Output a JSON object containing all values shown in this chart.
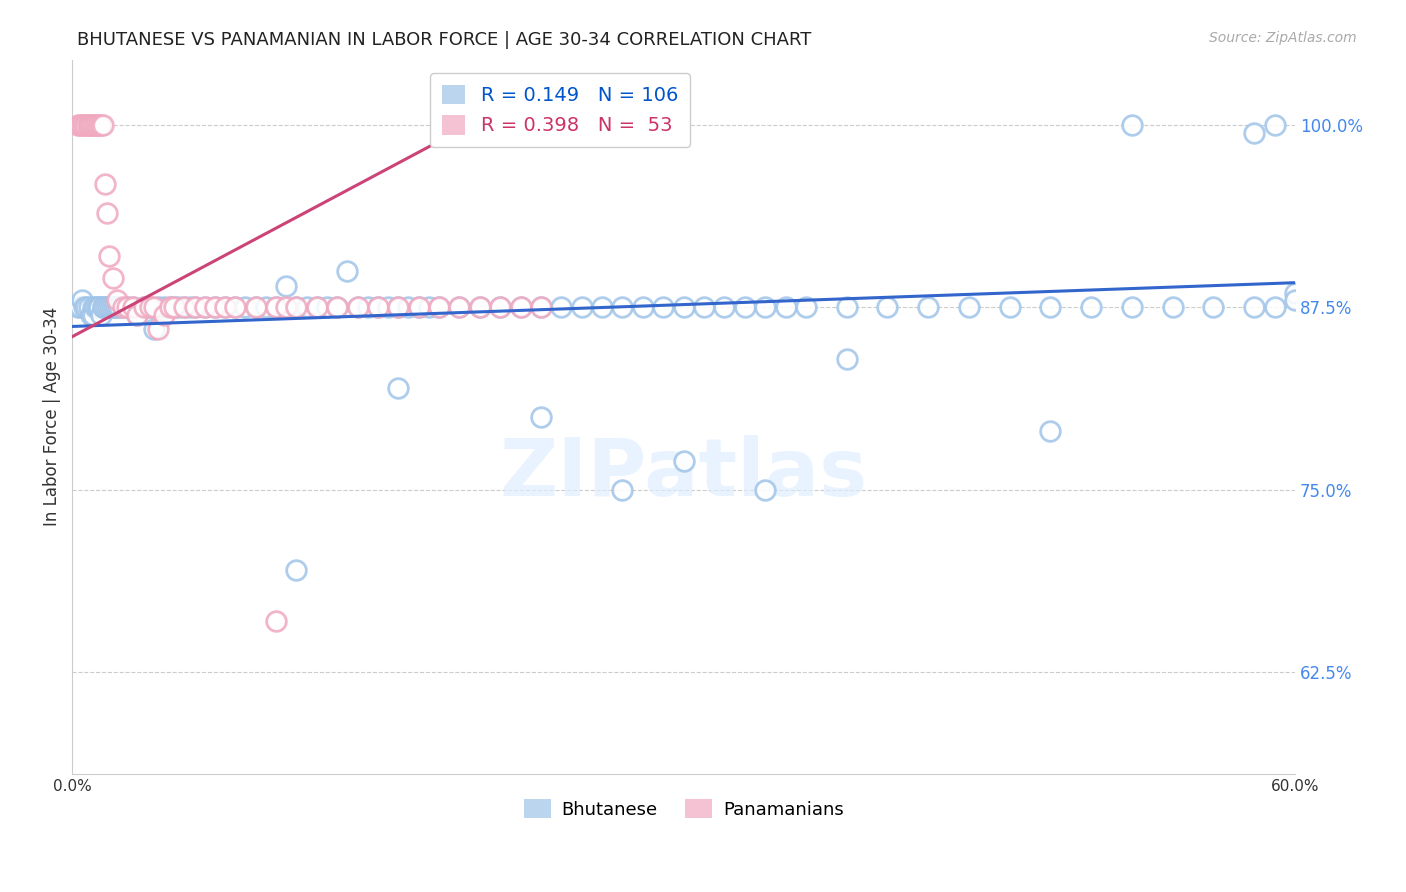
{
  "title": "BHUTANESE VS PANAMANIAN IN LABOR FORCE | AGE 30-34 CORRELATION CHART",
  "source": "Source: ZipAtlas.com",
  "ylabel": "In Labor Force | Age 30-34",
  "xlim": [
    0.0,
    0.6
  ],
  "ylim": [
    0.555,
    1.045
  ],
  "xticks": [
    0.0,
    0.1,
    0.2,
    0.3,
    0.4,
    0.5,
    0.6
  ],
  "xticklabels": [
    "0.0%",
    "",
    "",
    "",
    "",
    "",
    "60.0%"
  ],
  "yticks": [
    0.625,
    0.75,
    0.875,
    1.0
  ],
  "yticklabels": [
    "62.5%",
    "75.0%",
    "87.5%",
    "100.0%"
  ],
  "blue_R": 0.149,
  "blue_N": 106,
  "pink_R": 0.398,
  "pink_N": 53,
  "blue_color": "#a0c4e8",
  "pink_color": "#f0a8bf",
  "blue_line_color": "#3366cc",
  "pink_line_color": "#cc4477",
  "legend_label_blue": "Bhutanese",
  "legend_label_pink": "Panamanians",
  "watermark": "ZIPatlas",
  "blue_scatter_x": [
    0.003,
    0.004,
    0.005,
    0.006,
    0.007,
    0.008,
    0.009,
    0.01,
    0.01,
    0.011,
    0.012,
    0.013,
    0.013,
    0.014,
    0.015,
    0.015,
    0.016,
    0.017,
    0.018,
    0.019,
    0.02,
    0.021,
    0.022,
    0.023,
    0.025,
    0.027,
    0.03,
    0.032,
    0.035,
    0.038,
    0.04,
    0.042,
    0.045,
    0.048,
    0.05,
    0.052,
    0.055,
    0.058,
    0.06,
    0.065,
    0.07,
    0.075,
    0.08,
    0.085,
    0.09,
    0.095,
    0.1,
    0.105,
    0.11,
    0.115,
    0.12,
    0.125,
    0.13,
    0.135,
    0.14,
    0.145,
    0.15,
    0.155,
    0.16,
    0.165,
    0.17,
    0.175,
    0.18,
    0.19,
    0.2,
    0.21,
    0.22,
    0.23,
    0.24,
    0.25,
    0.26,
    0.27,
    0.28,
    0.29,
    0.3,
    0.31,
    0.32,
    0.33,
    0.34,
    0.35,
    0.36,
    0.38,
    0.4,
    0.42,
    0.44,
    0.46,
    0.48,
    0.5,
    0.52,
    0.54,
    0.56,
    0.58,
    0.59,
    0.6,
    0.11,
    0.16,
    0.23,
    0.3,
    0.38,
    0.48,
    0.52,
    0.58,
    0.59,
    0.6,
    0.27,
    0.34
  ],
  "blue_scatter_y": [
    0.875,
    0.875,
    0.88,
    0.875,
    0.875,
    0.875,
    0.87,
    0.875,
    0.87,
    0.875,
    0.875,
    0.875,
    0.875,
    0.87,
    0.875,
    0.875,
    0.875,
    0.875,
    0.875,
    0.875,
    0.875,
    0.875,
    0.875,
    0.875,
    0.875,
    0.875,
    0.875,
    0.87,
    0.875,
    0.875,
    0.86,
    0.875,
    0.875,
    0.875,
    0.875,
    0.875,
    0.875,
    0.875,
    0.875,
    0.875,
    0.875,
    0.875,
    0.875,
    0.875,
    0.875,
    0.875,
    0.875,
    0.89,
    0.875,
    0.875,
    0.875,
    0.875,
    0.875,
    0.9,
    0.875,
    0.875,
    0.875,
    0.875,
    0.875,
    0.875,
    0.875,
    0.875,
    0.875,
    0.875,
    0.875,
    0.875,
    0.875,
    0.875,
    0.875,
    0.875,
    0.875,
    0.875,
    0.875,
    0.875,
    0.875,
    0.875,
    0.875,
    0.875,
    0.875,
    0.875,
    0.875,
    0.875,
    0.875,
    0.875,
    0.875,
    0.875,
    0.875,
    0.875,
    0.875,
    0.875,
    0.875,
    0.875,
    0.875,
    0.885,
    0.695,
    0.82,
    0.8,
    0.77,
    0.84,
    0.79,
    1.0,
    0.995,
    1.0,
    0.88,
    0.75,
    0.75
  ],
  "pink_scatter_x": [
    0.003,
    0.004,
    0.005,
    0.006,
    0.007,
    0.008,
    0.008,
    0.009,
    0.01,
    0.011,
    0.012,
    0.013,
    0.014,
    0.015,
    0.016,
    0.017,
    0.018,
    0.02,
    0.022,
    0.025,
    0.027,
    0.03,
    0.032,
    0.035,
    0.038,
    0.04,
    0.042,
    0.045,
    0.048,
    0.05,
    0.055,
    0.06,
    0.065,
    0.07,
    0.075,
    0.08,
    0.09,
    0.1,
    0.105,
    0.11,
    0.12,
    0.13,
    0.14,
    0.15,
    0.16,
    0.17,
    0.18,
    0.19,
    0.2,
    0.21,
    0.22,
    0.23,
    0.1
  ],
  "pink_scatter_y": [
    1.0,
    1.0,
    1.0,
    1.0,
    1.0,
    1.0,
    1.0,
    1.0,
    1.0,
    1.0,
    1.0,
    1.0,
    1.0,
    1.0,
    0.96,
    0.94,
    0.91,
    0.895,
    0.88,
    0.875,
    0.875,
    0.875,
    0.87,
    0.875,
    0.875,
    0.875,
    0.86,
    0.87,
    0.875,
    0.875,
    0.875,
    0.875,
    0.875,
    0.875,
    0.875,
    0.875,
    0.875,
    0.875,
    0.875,
    0.875,
    0.875,
    0.875,
    0.875,
    0.875,
    0.875,
    0.875,
    0.875,
    0.875,
    0.875,
    0.875,
    0.875,
    0.875,
    0.66
  ],
  "blue_trend_x": [
    0.0,
    0.6
  ],
  "blue_trend_y": [
    0.862,
    0.892
  ],
  "pink_trend_x": [
    0.0,
    0.215
  ],
  "pink_trend_y": [
    0.855,
    1.015
  ]
}
